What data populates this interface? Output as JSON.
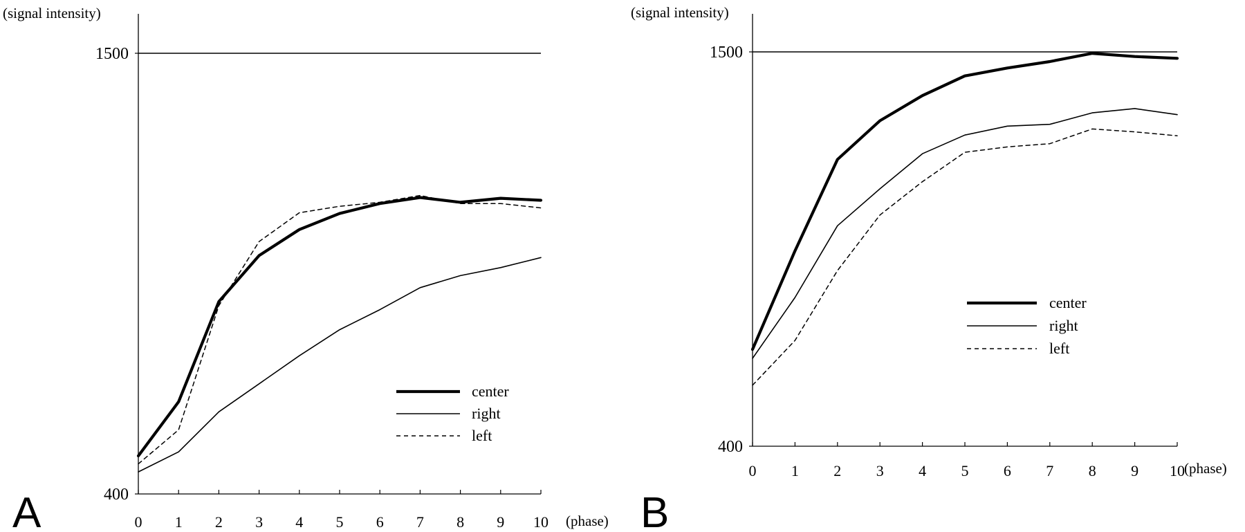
{
  "chart_data": [
    {
      "panel_label": "A",
      "type": "line",
      "ylabel": "(signal intensity)",
      "xlabel": "(phase)",
      "x": [
        0,
        1,
        2,
        3,
        4,
        5,
        6,
        7,
        8,
        9,
        10
      ],
      "xticks": [
        "0",
        "1",
        "2",
        "3",
        "4",
        "5",
        "6",
        "7",
        "8",
        "9",
        "10"
      ],
      "yticks": [
        "400",
        "1500"
      ],
      "ylim": [
        400,
        1500
      ],
      "reference_line": 1500,
      "legend_position": "bottom-right",
      "series": [
        {
          "name": "center",
          "style": "thick",
          "values": [
            495,
            630,
            880,
            995,
            1060,
            1100,
            1125,
            1140,
            1128,
            1138,
            1133
          ]
        },
        {
          "name": "right",
          "style": "thin",
          "values": [
            455,
            505,
            605,
            675,
            745,
            810,
            860,
            915,
            945,
            965,
            990
          ]
        },
        {
          "name": "left",
          "style": "dashed",
          "values": [
            475,
            560,
            870,
            1030,
            1102,
            1118,
            1128,
            1145,
            1125,
            1125,
            1114
          ]
        }
      ]
    },
    {
      "panel_label": "B",
      "type": "line",
      "ylabel": "(signal intensity)",
      "xlabel": "(phase)",
      "x": [
        0,
        1,
        2,
        3,
        4,
        5,
        6,
        7,
        8,
        9,
        10
      ],
      "xticks": [
        "0",
        "1",
        "2",
        "3",
        "4",
        "5",
        "6",
        "7",
        "8",
        "9",
        "10"
      ],
      "yticks": [
        "400",
        "1500"
      ],
      "ylim": [
        400,
        1500
      ],
      "reference_line": 1500,
      "legend_position": "center-right",
      "series": [
        {
          "name": "center",
          "style": "thick",
          "values": [
            670,
            945,
            1200,
            1308,
            1378,
            1433,
            1455,
            1473,
            1496,
            1487,
            1482
          ]
        },
        {
          "name": "right",
          "style": "thin",
          "values": [
            645,
            815,
            1015,
            1118,
            1216,
            1268,
            1293,
            1298,
            1330,
            1342,
            1325
          ]
        },
        {
          "name": "left",
          "style": "dashed",
          "values": [
            570,
            695,
            890,
            1045,
            1138,
            1220,
            1235,
            1244,
            1285,
            1277,
            1266
          ]
        }
      ]
    }
  ]
}
